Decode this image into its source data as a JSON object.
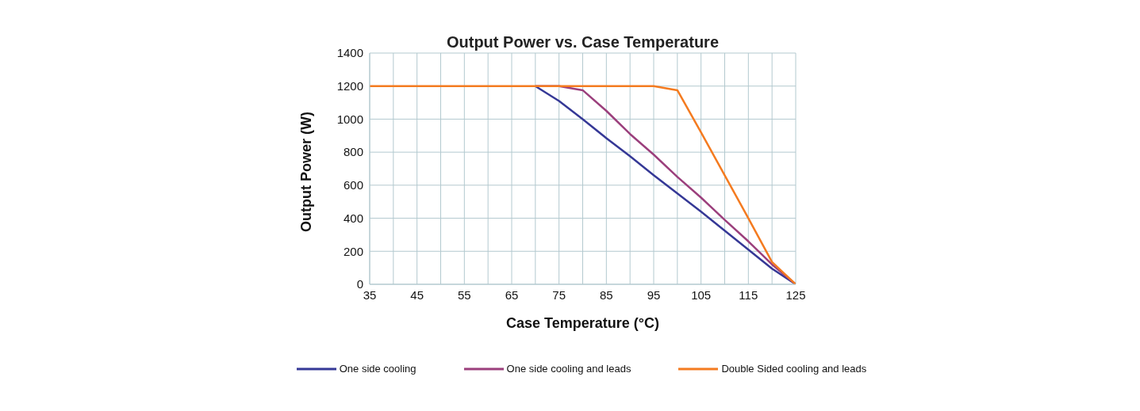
{
  "chart_data": {
    "type": "line",
    "title": "Output Power vs. Case Temperature",
    "xlabel": "Case Temperature (°C)",
    "ylabel": "Output Power (W)",
    "x": [
      35,
      40,
      45,
      50,
      55,
      60,
      65,
      70,
      75,
      80,
      85,
      90,
      95,
      100,
      105,
      110,
      115,
      120,
      125
    ],
    "series": [
      {
        "name": "One side cooling",
        "color": "#353896",
        "values": [
          null,
          null,
          null,
          null,
          null,
          null,
          null,
          1200,
          1110,
          1000,
          885,
          775,
          660,
          550,
          440,
          325,
          210,
          95,
          0
        ]
      },
      {
        "name": "One side cooling and leads",
        "color": "#9b3f7c",
        "values": [
          null,
          null,
          null,
          null,
          null,
          null,
          null,
          1200,
          1200,
          1175,
          1050,
          910,
          785,
          650,
          525,
          390,
          260,
          120,
          0
        ]
      },
      {
        "name": "Double Sided cooling and leads",
        "color": "#f47b20",
        "values": [
          1200,
          1200,
          1200,
          1200,
          1200,
          1200,
          1200,
          1200,
          1200,
          1200,
          1200,
          1200,
          1200,
          1175,
          920,
          660,
          400,
          135,
          0
        ]
      }
    ],
    "xlim": [
      35,
      125
    ],
    "xticks": [
      35,
      {
        "value": 40,
        "label": null
      },
      45,
      {
        "value": 50,
        "label": null
      },
      55,
      {
        "value": 60,
        "label": null
      },
      65,
      {
        "value": 70,
        "label": null
      },
      75,
      {
        "value": 80,
        "label": null
      },
      85,
      {
        "value": 90,
        "label": null
      },
      95,
      {
        "value": 100,
        "label": null
      },
      105,
      {
        "value": 110,
        "label": null
      },
      115,
      {
        "value": 120,
        "label": null
      },
      125
    ],
    "ylim": [
      0,
      1400
    ],
    "yticks": [
      0,
      200,
      400,
      600,
      800,
      1000,
      1200,
      1400
    ],
    "grid": true,
    "legend": "bottom",
    "marker": "none",
    "line_style": "solid"
  }
}
